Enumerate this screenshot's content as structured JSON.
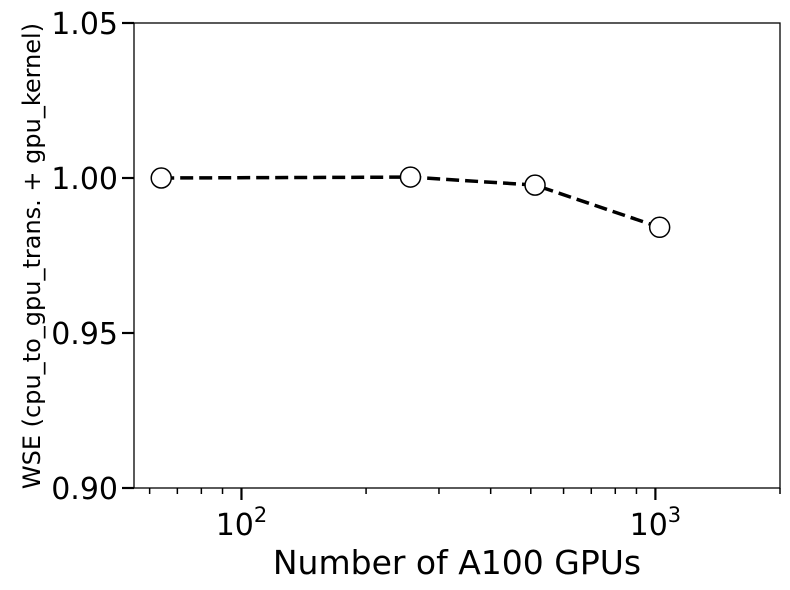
{
  "chart_data": {
    "type": "line",
    "title": "",
    "xlabel": "Number of A100 GPUs",
    "ylabel": "WSE (cpu_to_gpu_trans. + gpu_kernel)",
    "xscale": "log",
    "xlim": [
      55,
      2000
    ],
    "ylim": [
      0.9,
      1.05
    ],
    "grid": false,
    "legend": "none",
    "x": [
      64,
      256,
      512,
      1024
    ],
    "series": [
      {
        "values": [
          1.0,
          1.0003,
          0.9977,
          0.9841
        ],
        "line_style": "dashed",
        "marker": "open-circle",
        "color": "#000000"
      }
    ],
    "yticks": [
      {
        "value": 0.9,
        "label": "0.90"
      },
      {
        "value": 0.95,
        "label": "0.95"
      },
      {
        "value": 1.0,
        "label": "1.00"
      },
      {
        "value": 1.05,
        "label": "1.05"
      }
    ],
    "xticks_major": [
      {
        "value": 100,
        "base": "10",
        "exp": "2"
      },
      {
        "value": 1000,
        "base": "10",
        "exp": "3"
      }
    ],
    "xticks_minor": [
      60,
      70,
      80,
      90,
      200,
      300,
      400,
      500,
      600,
      700,
      800,
      900,
      2000
    ]
  }
}
